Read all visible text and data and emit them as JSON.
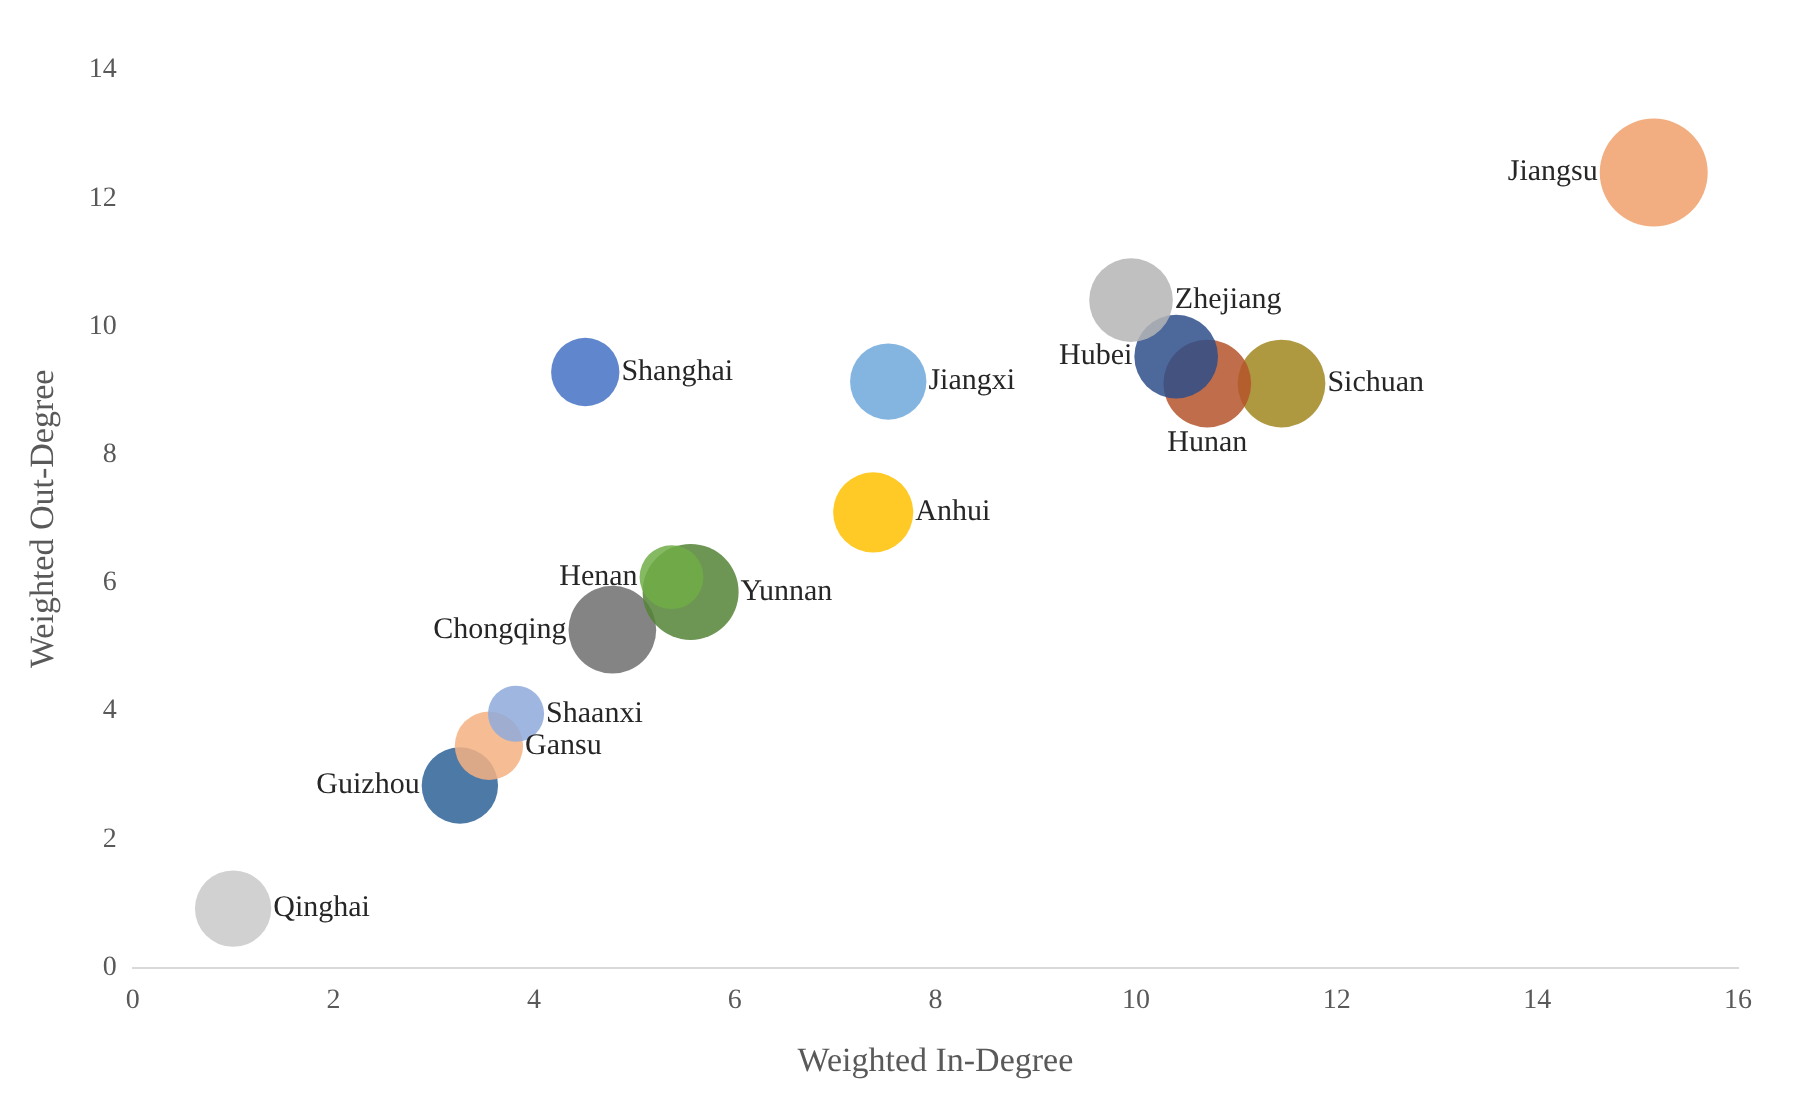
{
  "chart_data": {
    "type": "bubble",
    "xlabel": "Weighted In-Degree",
    "ylabel": "Weighted Out-Degree",
    "xlim": [
      0,
      16
    ],
    "xticks": [
      0,
      2,
      4,
      6,
      8,
      10,
      12,
      14,
      16
    ],
    "ylim": [
      0,
      14
    ],
    "yticks": [
      0,
      2,
      4,
      6,
      8,
      10,
      12,
      14
    ],
    "grid": false,
    "legend": false,
    "series": [
      {
        "name": "Jiangsu",
        "color": "#f0a06a",
        "x": [
          15.16
        ],
        "values": [
          12.4
        ],
        "sizes": [
          1
        ]
      },
      {
        "name": "Zhejiang",
        "color": "#b5b5b5",
        "x": [
          9.95
        ],
        "values": [
          10.41
        ],
        "sizes": [
          0.6
        ]
      },
      {
        "name": "Hubei",
        "color": "#2e4e8a",
        "x": [
          10.4
        ],
        "values": [
          9.53
        ],
        "sizes": [
          0.6
        ]
      },
      {
        "name": "Hunan",
        "color": "#b5542b",
        "x": [
          10.71
        ],
        "values": [
          9.11
        ],
        "sizes": [
          0.66
        ]
      },
      {
        "name": "Sichuan",
        "color": "#a0861e",
        "x": [
          11.45
        ],
        "values": [
          9.11
        ],
        "sizes": [
          0.66
        ]
      },
      {
        "name": "Shanghai",
        "color": "#4472c4",
        "x": [
          4.51
        ],
        "values": [
          9.29
        ],
        "sizes": [
          0.4
        ]
      },
      {
        "name": "Jiangxi",
        "color": "#6fa8dc",
        "x": [
          7.53
        ],
        "values": [
          9.14
        ],
        "sizes": [
          0.5
        ]
      },
      {
        "name": "Anhui",
        "color": "#ffc000",
        "x": [
          7.38
        ],
        "values": [
          7.1
        ],
        "sizes": [
          0.55
        ]
      },
      {
        "name": "Henan",
        "color": "#70ad47",
        "x": [
          5.37
        ],
        "values": [
          6.09
        ],
        "sizes": [
          0.35
        ]
      },
      {
        "name": "Yunnan",
        "color": "#548235",
        "x": [
          5.56
        ],
        "values": [
          5.86
        ],
        "sizes": [
          0.79
        ]
      },
      {
        "name": "Chongqing",
        "color": "#6e6e6e",
        "x": [
          4.78
        ],
        "values": [
          5.27
        ],
        "sizes": [
          0.66
        ]
      },
      {
        "name": "Shaanxi",
        "color": "#8eaadb",
        "x": [
          3.82
        ],
        "values": [
          3.96
        ],
        "sizes": [
          0.27
        ]
      },
      {
        "name": "Gansu",
        "color": "#f4b183",
        "x": [
          3.55
        ],
        "values": [
          3.46
        ],
        "sizes": [
          0.4
        ]
      },
      {
        "name": "Guizhou",
        "color": "#2e6297",
        "x": [
          3.26
        ],
        "values": [
          2.84
        ],
        "sizes": [
          0.5
        ]
      },
      {
        "name": "Qinghai",
        "color": "#c9c9c9",
        "x": [
          1.0
        ],
        "values": [
          0.92
        ],
        "sizes": [
          0.5
        ]
      }
    ]
  }
}
